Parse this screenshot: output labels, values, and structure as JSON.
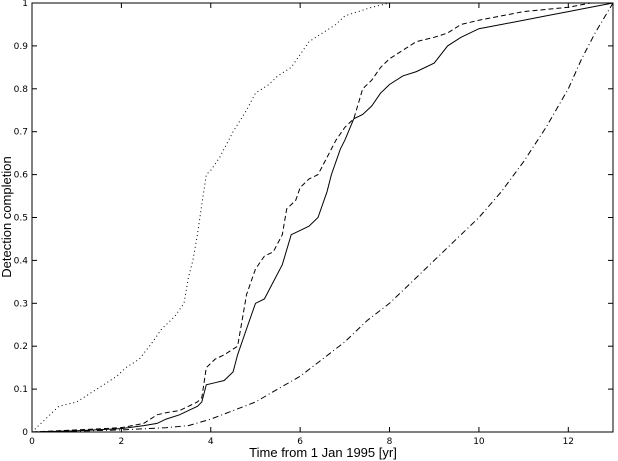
{
  "chart_data": {
    "type": "line",
    "title": "",
    "xlabel": "Time from 1 Jan 1995 [yr]",
    "ylabel": "Detection completion",
    "xlim": [
      0,
      13
    ],
    "ylim": [
      0,
      1
    ],
    "grid": false,
    "x_ticks": [
      0,
      2,
      4,
      6,
      8,
      10,
      12
    ],
    "x_tick_labels": [
      "0",
      "2",
      "4",
      "6",
      "8",
      "10",
      "12"
    ],
    "y_ticks": [
      0,
      0.1,
      0.2,
      0.3,
      0.4,
      0.5,
      0.6,
      0.7,
      0.8,
      0.9,
      1
    ],
    "y_tick_labels": [
      "0",
      "0.1",
      "0.2",
      "0.3",
      "0.4",
      "0.5",
      "0.6",
      "0.7",
      "0.8",
      "0.9",
      "1"
    ],
    "series": [
      {
        "style": "dotted",
        "color": "#000000",
        "x": [
          0,
          0.3,
          0.6,
          1.0,
          1.3,
          1.6,
          1.9,
          2.1,
          2.4,
          2.7,
          2.9,
          3.0,
          3.2,
          3.4,
          3.5,
          3.6,
          3.7,
          3.8,
          3.9,
          4.0,
          4.2,
          4.5,
          4.8,
          5.0,
          5.3,
          5.5,
          5.8,
          6.0,
          6.2,
          6.5,
          6.8,
          7.0,
          7.3,
          7.6,
          8.0,
          9.0,
          10.0,
          11.0,
          13.0
        ],
        "y": [
          0,
          0.03,
          0.06,
          0.07,
          0.09,
          0.11,
          0.13,
          0.15,
          0.17,
          0.21,
          0.24,
          0.25,
          0.27,
          0.3,
          0.36,
          0.4,
          0.46,
          0.53,
          0.6,
          0.61,
          0.64,
          0.7,
          0.75,
          0.79,
          0.81,
          0.83,
          0.85,
          0.88,
          0.91,
          0.93,
          0.95,
          0.97,
          0.98,
          0.99,
          1.0,
          1.0,
          1.0,
          1.0,
          1.0
        ]
      },
      {
        "style": "dashed",
        "color": "#000000",
        "x": [
          0,
          1.0,
          2.0,
          2.5,
          2.8,
          3.0,
          3.3,
          3.5,
          3.7,
          3.8,
          3.9,
          4.1,
          4.3,
          4.6,
          4.7,
          4.8,
          5.0,
          5.2,
          5.4,
          5.6,
          5.7,
          5.9,
          6.0,
          6.2,
          6.4,
          6.6,
          6.8,
          7.0,
          7.2,
          7.4,
          7.6,
          7.8,
          8.0,
          8.3,
          8.6,
          9.0,
          9.3,
          9.6,
          10.0,
          10.5,
          11.0,
          11.5,
          12.0,
          12.5,
          13.0
        ],
        "y": [
          0,
          0.005,
          0.01,
          0.02,
          0.04,
          0.045,
          0.05,
          0.06,
          0.07,
          0.08,
          0.15,
          0.17,
          0.18,
          0.2,
          0.26,
          0.32,
          0.38,
          0.41,
          0.42,
          0.46,
          0.52,
          0.54,
          0.57,
          0.59,
          0.6,
          0.64,
          0.68,
          0.71,
          0.73,
          0.8,
          0.82,
          0.85,
          0.87,
          0.89,
          0.91,
          0.92,
          0.93,
          0.95,
          0.96,
          0.97,
          0.98,
          0.985,
          0.99,
          1.0,
          1.0
        ]
      },
      {
        "style": "solid",
        "color": "#000000",
        "x": [
          0,
          1.0,
          2.0,
          2.5,
          2.8,
          3.0,
          3.3,
          3.5,
          3.7,
          3.8,
          3.9,
          4.1,
          4.3,
          4.5,
          4.6,
          4.8,
          5.0,
          5.2,
          5.4,
          5.6,
          5.8,
          6.0,
          6.2,
          6.4,
          6.6,
          6.7,
          6.9,
          7.0,
          7.2,
          7.4,
          7.6,
          7.8,
          8.0,
          8.3,
          8.6,
          9.0,
          9.3,
          9.6,
          10.0,
          10.5,
          11.0,
          11.5,
          12.0,
          12.5,
          13.0
        ],
        "y": [
          0,
          0.003,
          0.008,
          0.015,
          0.02,
          0.03,
          0.04,
          0.05,
          0.06,
          0.07,
          0.11,
          0.115,
          0.12,
          0.14,
          0.18,
          0.24,
          0.3,
          0.31,
          0.35,
          0.39,
          0.46,
          0.47,
          0.48,
          0.5,
          0.56,
          0.6,
          0.66,
          0.68,
          0.73,
          0.74,
          0.76,
          0.79,
          0.81,
          0.83,
          0.84,
          0.86,
          0.9,
          0.92,
          0.94,
          0.95,
          0.96,
          0.97,
          0.98,
          0.99,
          1.0
        ]
      },
      {
        "style": "dashdot",
        "color": "#000000",
        "x": [
          0,
          1.0,
          2.0,
          3.0,
          3.5,
          4.0,
          4.5,
          5.0,
          5.5,
          6.0,
          6.5,
          7.0,
          7.5,
          8.0,
          8.5,
          9.0,
          9.5,
          10.0,
          10.5,
          11.0,
          11.5,
          12.0,
          12.3,
          12.6,
          13.0
        ],
        "y": [
          0,
          0.002,
          0.005,
          0.01,
          0.015,
          0.03,
          0.05,
          0.07,
          0.1,
          0.13,
          0.17,
          0.21,
          0.26,
          0.3,
          0.35,
          0.4,
          0.45,
          0.5,
          0.56,
          0.63,
          0.71,
          0.8,
          0.87,
          0.93,
          1.0
        ]
      }
    ]
  }
}
